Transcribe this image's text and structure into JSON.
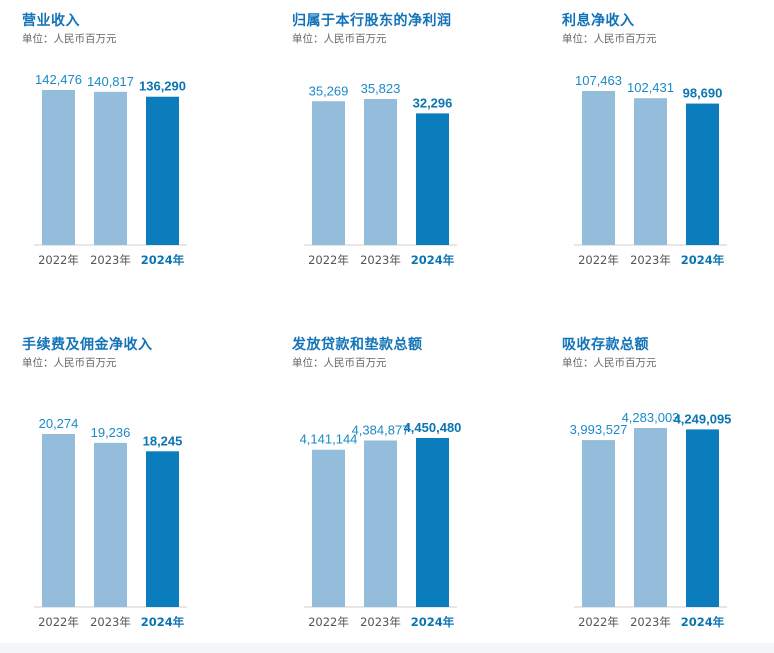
{
  "unit_label": "单位：人民币百万元",
  "categories": [
    "2022年",
    "2023年",
    "2024年"
  ],
  "colors": {
    "bar_light": "#94bcdb",
    "bar_highlight": "#0b7cbc",
    "title": "#1273b8"
  },
  "chart_data": [
    {
      "type": "bar",
      "title": "营业收入",
      "subtitle": "单位：人民币百万元",
      "categories": [
        "2022年",
        "2023年",
        "2024年"
      ],
      "values": [
        142476,
        140817,
        136290
      ],
      "labels": [
        "142,476",
        "140,817",
        "136,290"
      ],
      "highlight_index": 2
    },
    {
      "type": "bar",
      "title": "归属于本行股东的净利润",
      "subtitle": "单位：人民币百万元",
      "categories": [
        "2022年",
        "2023年",
        "2024年"
      ],
      "values": [
        35269,
        35823,
        32296
      ],
      "labels": [
        "35,269",
        "35,823",
        "32,296"
      ],
      "highlight_index": 2
    },
    {
      "type": "bar",
      "title": "利息净收入",
      "subtitle": "单位：人民币百万元",
      "categories": [
        "2022年",
        "2023年",
        "2024年"
      ],
      "values": [
        107463,
        102431,
        98690
      ],
      "labels": [
        "107,463",
        "102,431",
        "98,690"
      ],
      "highlight_index": 2
    },
    {
      "type": "bar",
      "title": "手续费及佣金净收入",
      "subtitle": "单位：人民币百万元",
      "categories": [
        "2022年",
        "2023年",
        "2024年"
      ],
      "values": [
        20274,
        19236,
        18245
      ],
      "labels": [
        "20,274",
        "19,236",
        "18,245"
      ],
      "highlight_index": 2
    },
    {
      "type": "bar",
      "title": "发放贷款和垫款总额",
      "subtitle": "单位：人民币百万元",
      "categories": [
        "2022年",
        "2023年",
        "2024年"
      ],
      "values": [
        4141144,
        4384877,
        4450480
      ],
      "labels": [
        "4,141,144",
        "4,384,877",
        "4,450,480"
      ],
      "highlight_index": 2
    },
    {
      "type": "bar",
      "title": "吸收存款总额",
      "subtitle": "单位：人民币百万元",
      "categories": [
        "2022年",
        "2023年",
        "2024年"
      ],
      "values": [
        3993527,
        4283003,
        4249095
      ],
      "labels": [
        "3,993,527",
        "4,283,003",
        "4,249,095"
      ],
      "highlight_index": 2
    }
  ]
}
